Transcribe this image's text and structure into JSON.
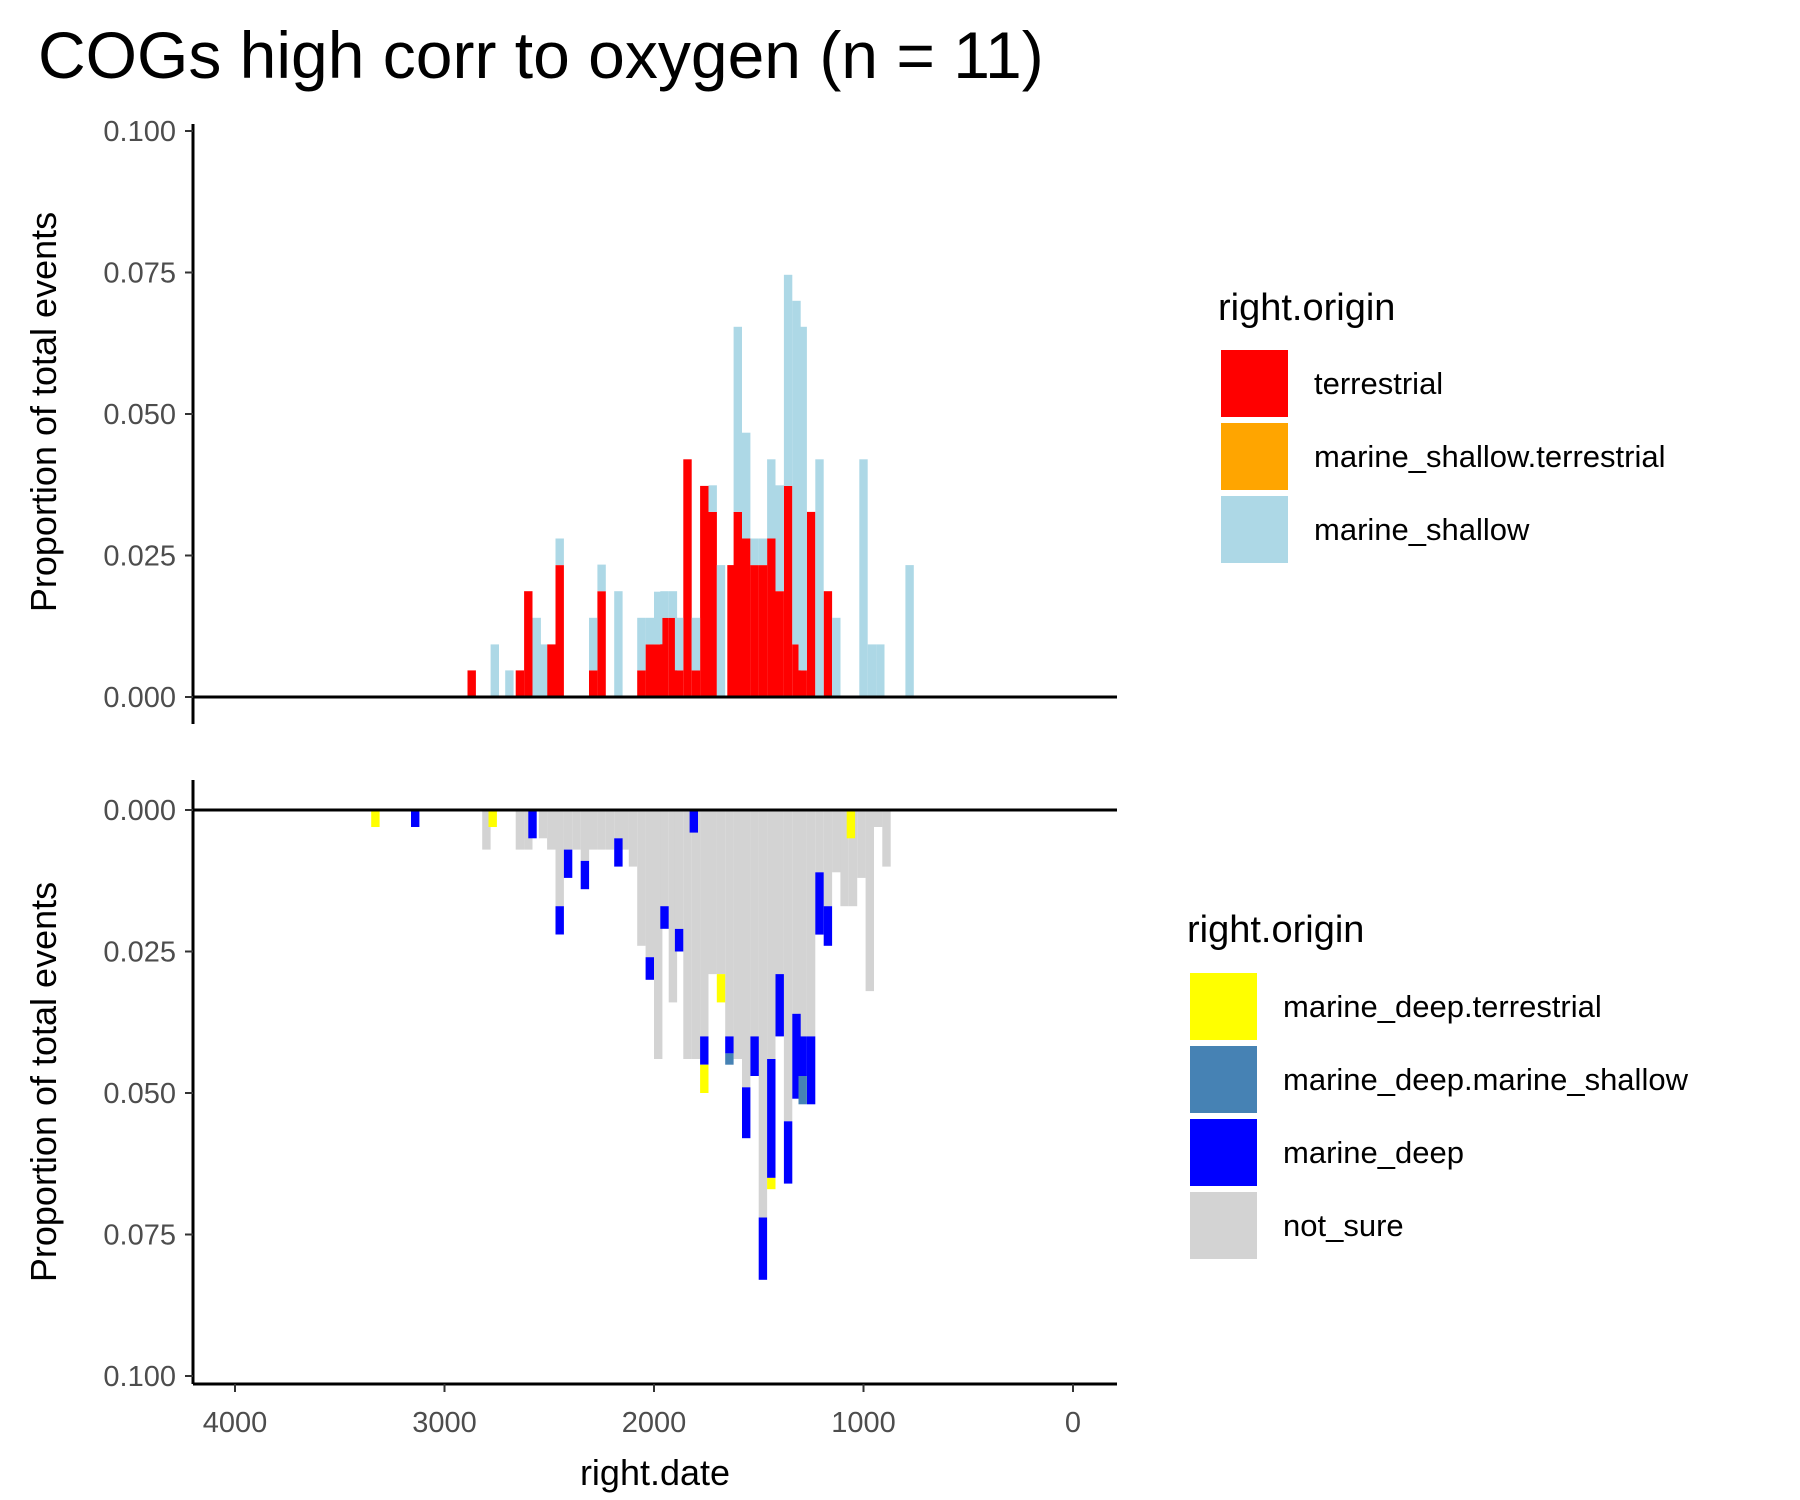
{
  "title": "COGs high corr to oxygen (n = 11)",
  "chart_data": [
    {
      "type": "bar",
      "subtype": "stacked-histogram",
      "panel": "top",
      "xlabel": "",
      "ylabel": "Proportion of total events",
      "xlim": [
        4000,
        0
      ],
      "x_reversed": true,
      "ylim": [
        0,
        0.1
      ],
      "y_ticks": [
        "0.000",
        "0.025",
        "0.050",
        "0.075",
        "0.100"
      ],
      "legend": {
        "title": "right.origin",
        "entries": [
          {
            "label": "terrestrial",
            "color": "#ff0000"
          },
          {
            "label": "marine_shallow.terrestrial",
            "color": "#ffa500"
          },
          {
            "label": "marine_shallow",
            "color": "#add8e6"
          }
        ]
      },
      "series": [
        {
          "name": "terrestrial",
          "color": "#ff0000",
          "x": [
            2870,
            2640,
            2600,
            2490,
            2450,
            2290,
            2250,
            2060,
            2020,
            1980,
            1950,
            1910,
            1880,
            1840,
            1800,
            1760,
            1720,
            1630,
            1600,
            1560,
            1520,
            1480,
            1440,
            1400,
            1360,
            1320,
            1290,
            1250,
            1170
          ],
          "values": [
            0.0047,
            0.0047,
            0.0187,
            0.0093,
            0.0233,
            0.0047,
            0.0187,
            0.0047,
            0.0093,
            0.0093,
            0.014,
            0.014,
            0.0047,
            0.042,
            0.0047,
            0.0373,
            0.0327,
            0.0233,
            0.0327,
            0.028,
            0.0233,
            0.0233,
            0.028,
            0.0187,
            0.0373,
            0.0093,
            0.0047,
            0.0327,
            0.0187
          ]
        },
        {
          "name": "marine_shallow",
          "color": "#add8e6",
          "x": [
            2760,
            2690,
            2560,
            2530,
            2450,
            2290,
            2250,
            2170,
            2060,
            2020,
            1980,
            1950,
            1910,
            1880,
            1800,
            1720,
            1680,
            1600,
            1560,
            1520,
            1480,
            1440,
            1400,
            1360,
            1320,
            1290,
            1210,
            1130,
            1000,
            960,
            920,
            780
          ],
          "values": [
            0.0093,
            0.0047,
            0.014,
            0.0093,
            0.0047,
            0.0093,
            0.0047,
            0.0187,
            0.0093,
            0.0047,
            0.0093,
            0.0047,
            0.0047,
            0.0093,
            0.0093,
            0.0047,
            0.0233,
            0.0327,
            0.0187,
            0.0047,
            0.0047,
            0.014,
            0.0187,
            0.0373,
            0.0607,
            0.0607,
            0.042,
            0.014,
            0.042,
            0.0093,
            0.0093,
            0.0233
          ]
        }
      ]
    },
    {
      "type": "bar",
      "subtype": "stacked-histogram-inverted",
      "panel": "bottom",
      "xlabel": "right.date",
      "ylabel": "Proportion of total events",
      "xlim": [
        4000,
        0
      ],
      "x_reversed": true,
      "x_ticks": [
        "4000",
        "3000",
        "2000",
        "1000",
        "0"
      ],
      "ylim": [
        0,
        0.1
      ],
      "y_reversed": true,
      "y_ticks": [
        "0.000",
        "0.025",
        "0.050",
        "0.075",
        "0.100"
      ],
      "legend": {
        "title": "right.origin",
        "entries": [
          {
            "label": "marine_deep.terrestrial",
            "color": "#ffff00"
          },
          {
            "label": "marine_deep.marine_shallow",
            "color": "#4682b4"
          },
          {
            "label": "marine_deep",
            "color": "#0000ff"
          },
          {
            "label": "not_sure",
            "color": "#d3d3d3"
          }
        ]
      },
      "series": [
        {
          "name": "not_sure",
          "color": "#d3d3d3",
          "x": [
            2800,
            2640,
            2600,
            2530,
            2490,
            2450,
            2410,
            2370,
            2330,
            2290,
            2250,
            2210,
            2170,
            2140,
            2100,
            2060,
            2020,
            1980,
            1950,
            1910,
            1880,
            1840,
            1800,
            1760,
            1720,
            1680,
            1640,
            1600,
            1560,
            1520,
            1480,
            1440,
            1400,
            1360,
            1320,
            1290,
            1250,
            1210,
            1170,
            1130,
            1090,
            1050,
            1010,
            970,
            930,
            890
          ],
          "values": [
            0.007,
            0.007,
            0.007,
            0.005,
            0.007,
            0.017,
            0.007,
            0.007,
            0.009,
            0.007,
            0.007,
            0.007,
            0.005,
            0.007,
            0.01,
            0.024,
            0.026,
            0.044,
            0.017,
            0.034,
            0.021,
            0.044,
            0.044,
            0.04,
            0.029,
            0.029,
            0.04,
            0.044,
            0.049,
            0.04,
            0.072,
            0.044,
            0.029,
            0.055,
            0.036,
            0.04,
            0.04,
            0.011,
            0.017,
            0.011,
            0.017,
            0.017,
            0.012,
            0.032,
            0.003,
            0.01
          ]
        },
        {
          "name": "marine_deep",
          "color": "#0000ff",
          "x": [
            3140,
            2580,
            2450,
            2410,
            2330,
            2170,
            2020,
            1950,
            1880,
            1810,
            1760,
            1640,
            1560,
            1520,
            1480,
            1440,
            1400,
            1360,
            1320,
            1290,
            1250,
            1210,
            1170
          ],
          "values": [
            0.003,
            0.005,
            0.005,
            0.005,
            0.005,
            0.005,
            0.004,
            0.004,
            0.004,
            0.004,
            0.005,
            0.003,
            0.009,
            0.007,
            0.011,
            0.021,
            0.011,
            0.011,
            0.015,
            0.007,
            0.012,
            0.011,
            0.007
          ]
        },
        {
          "name": "marine_deep.marine_shallow",
          "color": "#4682b4",
          "x": [
            1640,
            1290
          ],
          "values": [
            0.002,
            0.005
          ]
        },
        {
          "name": "marine_deep.terrestrial",
          "color": "#ffff00",
          "x": [
            3330,
            2770,
            1760,
            1680,
            1440,
            1060
          ],
          "values": [
            0.003,
            0.003,
            0.005,
            0.005,
            0.002,
            0.005
          ]
        }
      ]
    }
  ]
}
